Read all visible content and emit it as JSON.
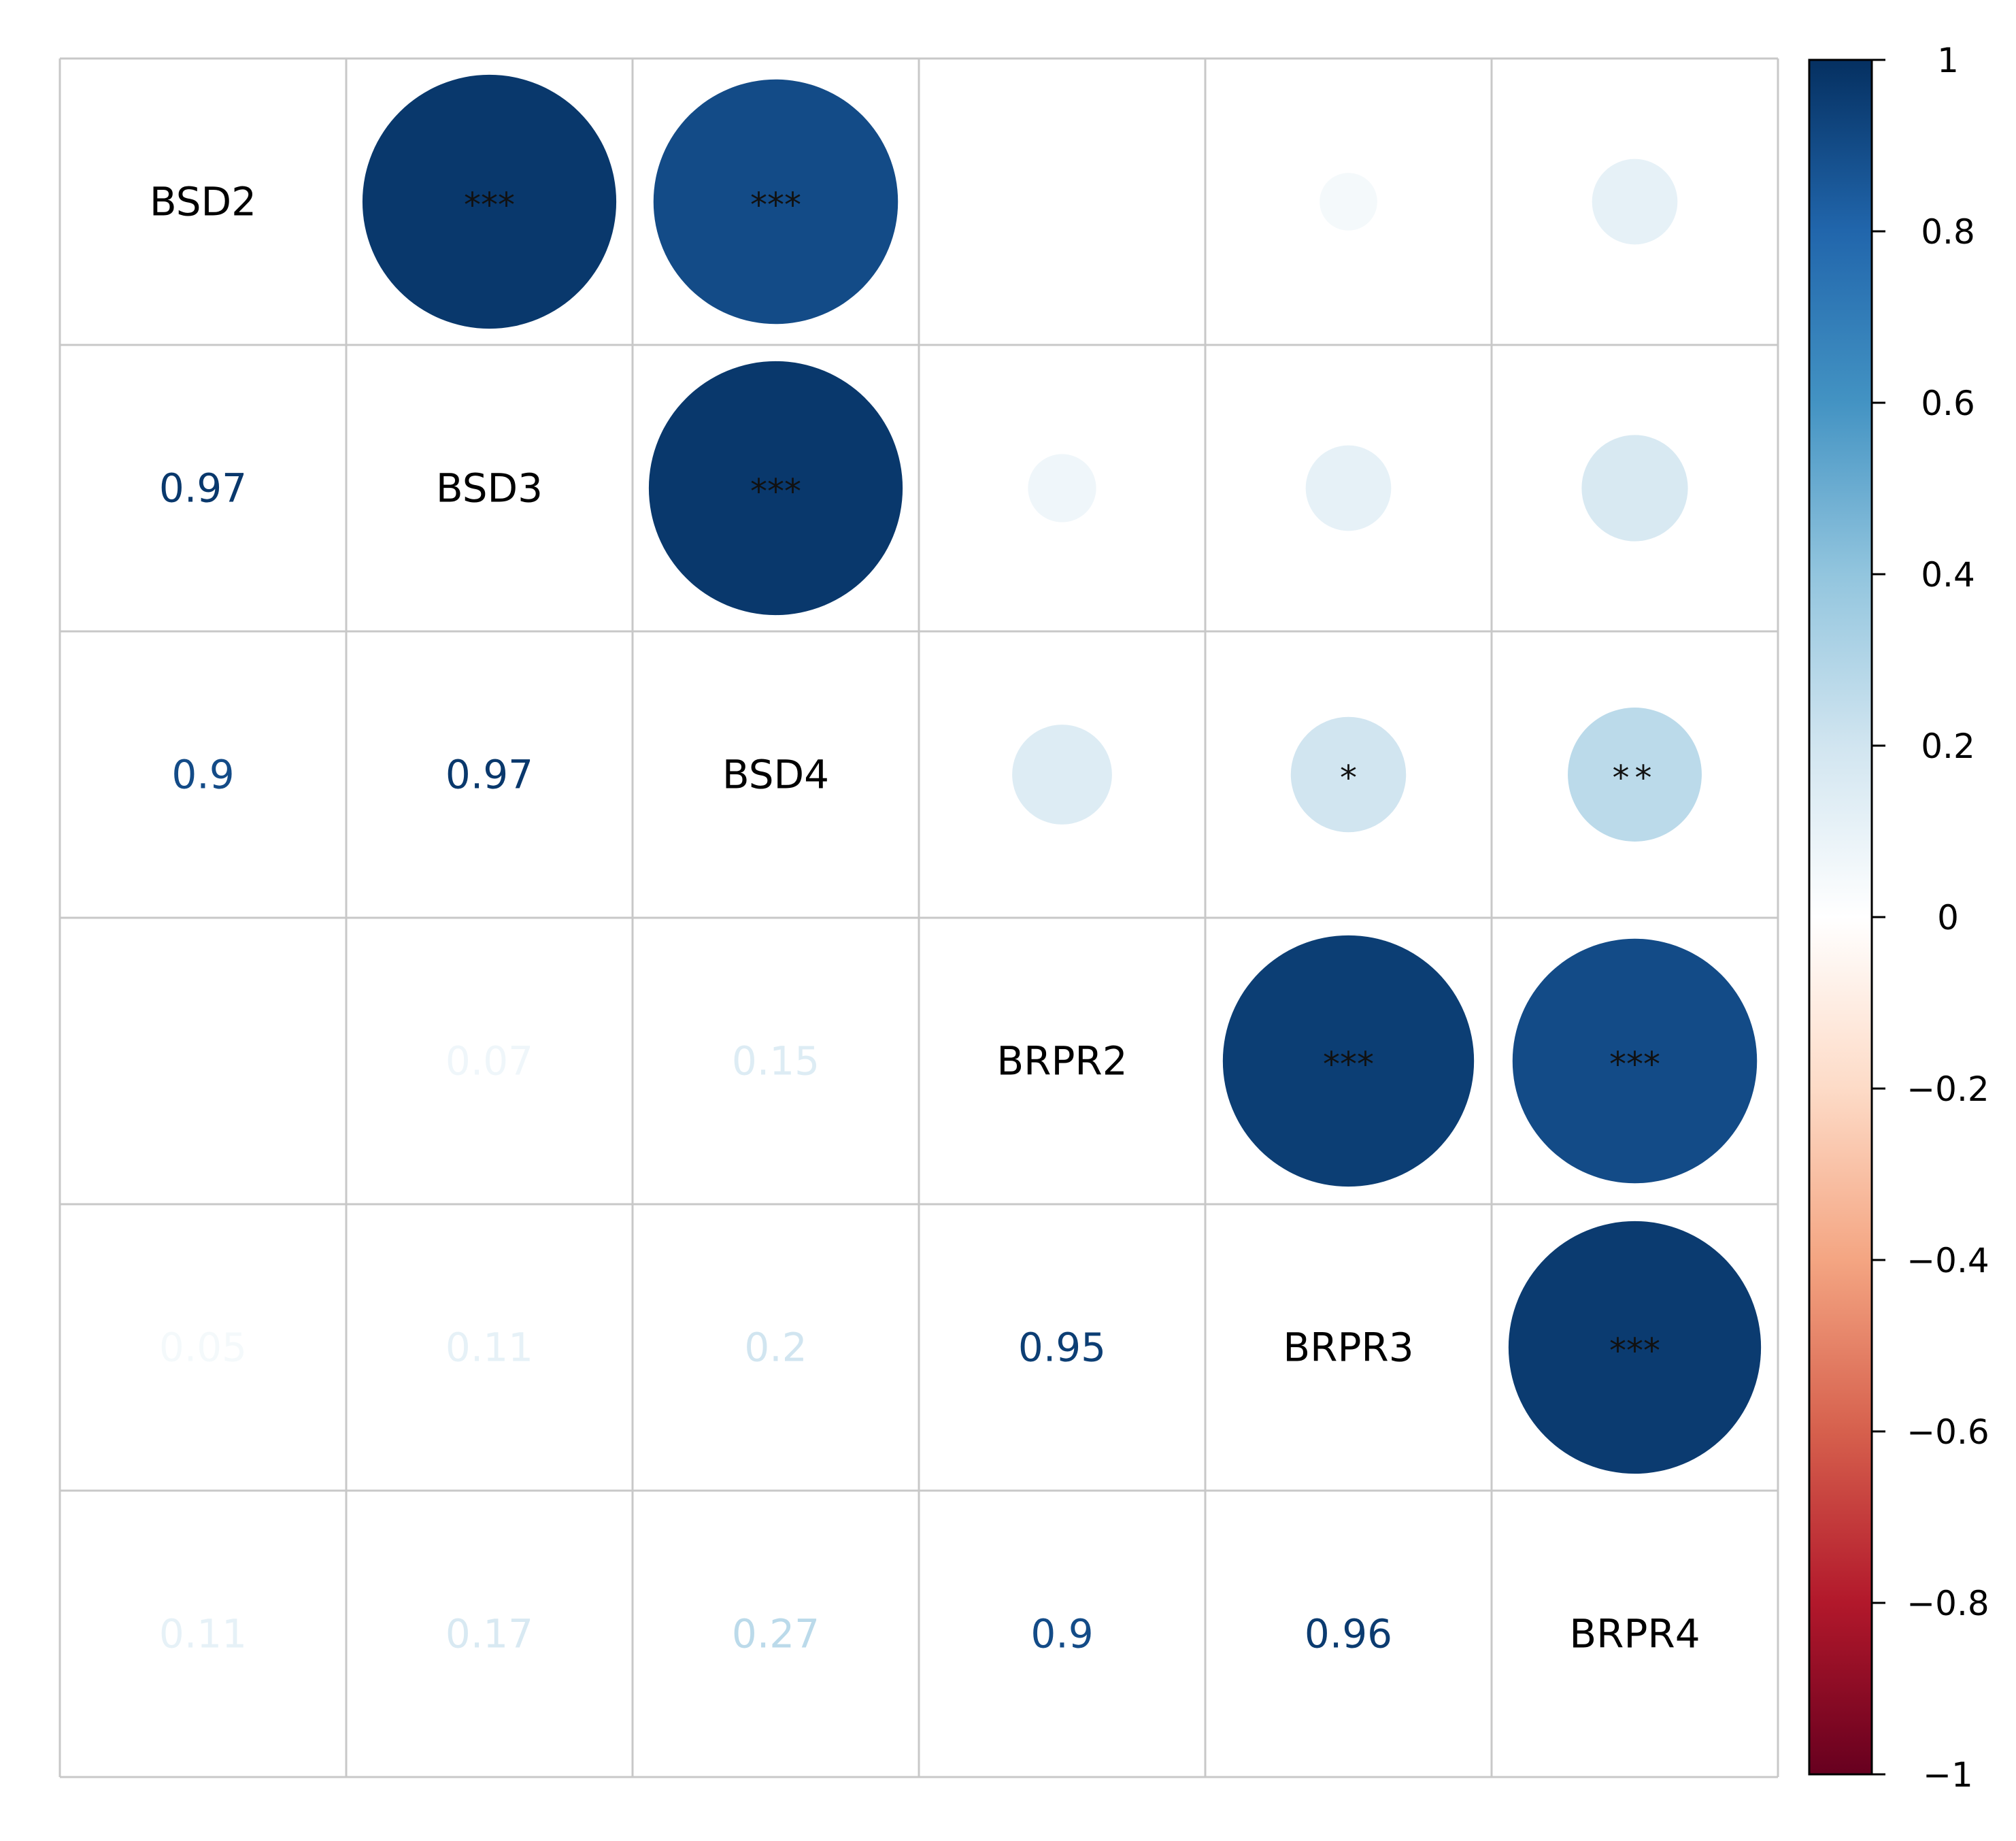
{
  "chart_data": {
    "type": "heatmap",
    "style": "correlation-matrix",
    "variables": [
      "BSD2",
      "BSD3",
      "BSD4",
      "BRPR2",
      "BRPR3",
      "BRPR4"
    ],
    "lower_triangle": "number",
    "upper_triangle": "circle",
    "matrix": [
      [
        1,
        0.97,
        0.9,
        0,
        0.05,
        0.11
      ],
      [
        0.97,
        1,
        0.97,
        0.07,
        0.11,
        0.17
      ],
      [
        0.9,
        0.97,
        1,
        0.15,
        0.2,
        0.27
      ],
      [
        0,
        0.07,
        0.15,
        1,
        0.95,
        0.9
      ],
      [
        0.05,
        0.11,
        0.2,
        0.95,
        1,
        0.96
      ],
      [
        0.11,
        0.17,
        0.27,
        0.9,
        0.96,
        1
      ]
    ],
    "number_labels": [
      [
        "",
        "",
        "",
        "",
        "",
        ""
      ],
      [
        "0.97",
        "",
        "",
        "",
        "",
        ""
      ],
      [
        "0.9",
        "0.97",
        "",
        "",
        "",
        ""
      ],
      [
        "0",
        "0.07",
        "0.15",
        "",
        "",
        ""
      ],
      [
        "0.05",
        "0.11",
        "0.2",
        "0.95",
        "",
        ""
      ],
      [
        "0.11",
        "0.17",
        "0.27",
        "0.9",
        "0.96",
        ""
      ]
    ],
    "significance": [
      [
        "",
        "***",
        "***",
        "",
        "",
        ""
      ],
      [
        "",
        "",
        "***",
        "",
        "",
        ""
      ],
      [
        "",
        "",
        "",
        "",
        "*",
        "**"
      ],
      [
        "",
        "",
        "",
        "",
        "***",
        "***"
      ],
      [
        "",
        "",
        "",
        "",
        "",
        "***"
      ],
      [
        "",
        "",
        "",
        "",
        "",
        ""
      ]
    ],
    "colorbar": {
      "range": [
        -1,
        1
      ],
      "ticks": [
        1,
        0.8,
        0.6,
        0.4,
        0.2,
        0,
        -0.2,
        -0.4,
        -0.6,
        -0.8,
        -1
      ],
      "tick_labels": [
        "1",
        "0.8",
        "0.6",
        "0.4",
        "0.2",
        "0",
        "−0.2",
        "−0.4",
        "−0.6",
        "−0.8",
        "−1"
      ],
      "colors": [
        "#67001F",
        "#B2182B",
        "#D6604D",
        "#F4A582",
        "#FDDBC7",
        "#FFFFFF",
        "#D1E5F0",
        "#92C5DE",
        "#4393C3",
        "#2166AC",
        "#053061"
      ],
      "placement": "right"
    }
  }
}
